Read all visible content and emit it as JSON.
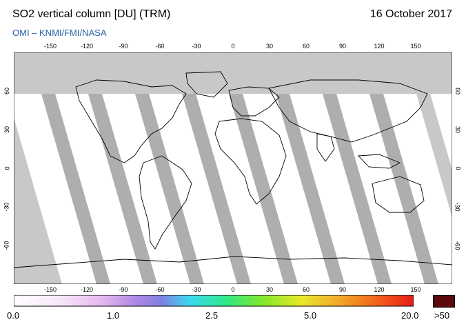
{
  "header": {
    "title": "SO2 vertical column [DU] (TRM)",
    "date": "16 October 2017",
    "source": "OMI  –  KNMI/FMI/NASA"
  },
  "map": {
    "lon_ticks": [
      "-150",
      "-120",
      "-90",
      "-60",
      "-30",
      "0",
      "30",
      "60",
      "90",
      "120",
      "150"
    ],
    "lat_ticks": [
      "60",
      "30",
      "0",
      "-30",
      "-60"
    ],
    "lon_range": [
      -180,
      180
    ],
    "lat_range": [
      -90,
      90
    ],
    "colors": {
      "no_data": "#c8c8c8",
      "coverage_light": "#ffffff",
      "coverage_dark": "#9a9a9a",
      "coastline": "#000000"
    }
  },
  "colorbar": {
    "labels": [
      "0.0",
      "1.0",
      "2.5",
      "5.0",
      "20.0",
      ">50"
    ],
    "gradient": [
      "#ffffff",
      "#f6e6f8",
      "#e6b8ee",
      "#b48ae6",
      "#8080e0",
      "#3ad9f2",
      "#2ee88a",
      "#7fe82a",
      "#e8e82a",
      "#f2a42a",
      "#f25a1a",
      "#e61a1a"
    ],
    "over_color": "#5a0a0a"
  }
}
